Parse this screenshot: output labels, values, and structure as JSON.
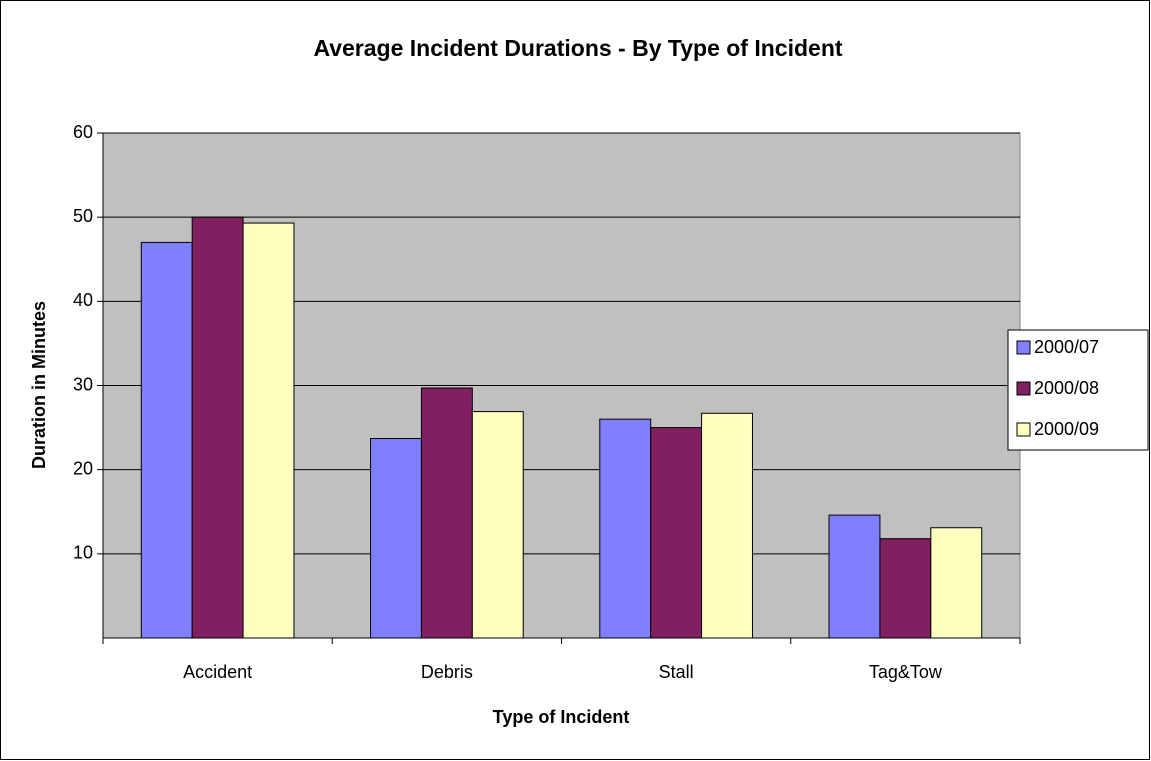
{
  "chart_data": {
    "type": "bar",
    "title": "Average Incident Durations - By Type of Incident",
    "x_label": "Type of Incident",
    "y_label": "Duration in Minutes",
    "categories": [
      "Accident",
      "Debris",
      "Stall",
      "Tag&Tow"
    ],
    "series": [
      {
        "name": "2000/07",
        "color": "#8080ff",
        "values": [
          47,
          23.7,
          26,
          14.6
        ]
      },
      {
        "name": "2000/08",
        "color": "#802060",
        "values": [
          50,
          29.7,
          25,
          11.8
        ]
      },
      {
        "name": "2000/09",
        "color": "#ffffc0",
        "values": [
          49.3,
          26.9,
          26.7,
          13.1
        ]
      }
    ],
    "ylim": [
      0,
      60
    ],
    "yticks": [
      10,
      20,
      30,
      40,
      50,
      60
    ],
    "grid": true,
    "plot_background": "#c0c0c0",
    "legend": "right"
  }
}
